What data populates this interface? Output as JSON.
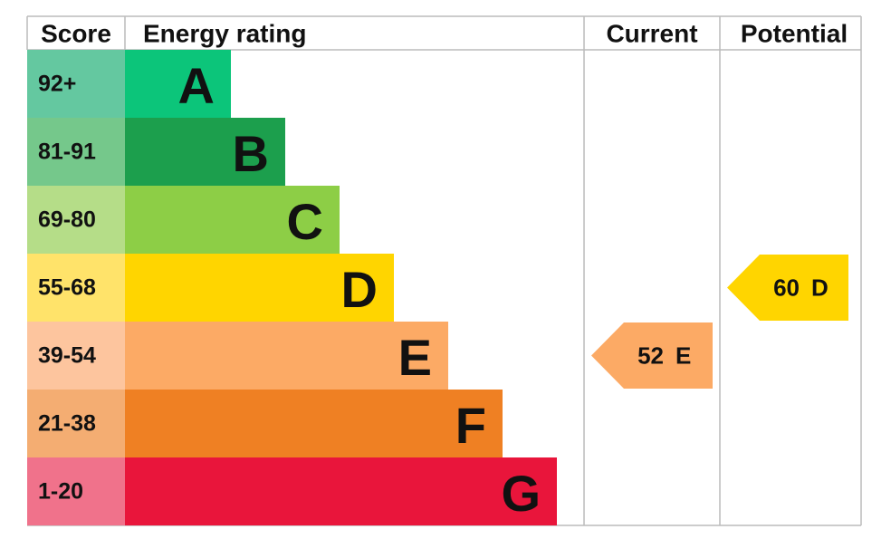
{
  "header": {
    "score": "Score",
    "energy_rating": "Energy rating",
    "current": "Current",
    "potential": "Potential"
  },
  "rows": [
    {
      "score": "92+",
      "letter": "A",
      "color": "#0cc57a",
      "score_color": "#64c8a0"
    },
    {
      "score": "81-91",
      "letter": "B",
      "color": "#1c9f4d",
      "score_color": "#75c88b"
    },
    {
      "score": "69-80",
      "letter": "C",
      "color": "#8dce46",
      "score_color": "#b5dd88"
    },
    {
      "score": "55-68",
      "letter": "D",
      "color": "#ffd500",
      "score_color": "#ffe36a"
    },
    {
      "score": "39-54",
      "letter": "E",
      "color": "#fcaa65",
      "score_color": "#fdc59e"
    },
    {
      "score": "21-38",
      "letter": "F",
      "color": "#ef8023",
      "score_color": "#f4ad72"
    },
    {
      "score": "1-20",
      "letter": "G",
      "color": "#e9153b",
      "score_color": "#f0728b"
    }
  ],
  "current": {
    "value": 52,
    "rating": "E"
  },
  "potential": {
    "value": 60,
    "rating": "D"
  }
}
